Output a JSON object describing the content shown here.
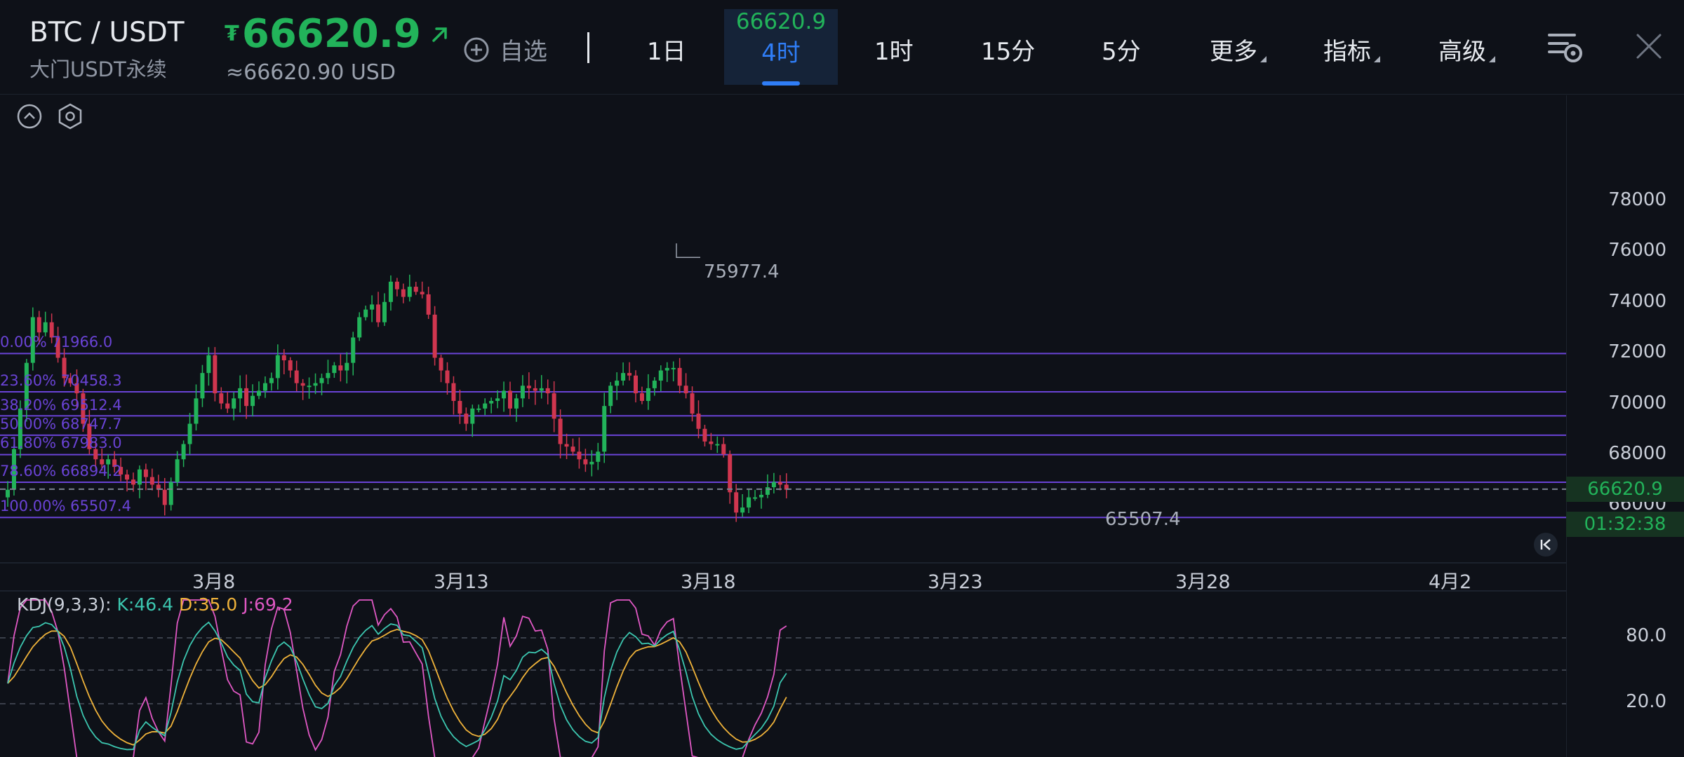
{
  "header": {
    "pair": "BTC / USDT",
    "subtitle": "大门USDT永续",
    "currency_symbol": "₮",
    "price": "66620.9",
    "usd_price": "≈66620.90 USD",
    "favorite_label": "自选",
    "timeframes": [
      "1日",
      "4时",
      "1时",
      "15分",
      "5分"
    ],
    "active_timeframe": "4时",
    "active_price": "66620.9",
    "menus": [
      "更多",
      "指标",
      "高级"
    ]
  },
  "chart": {
    "price_axis": [
      "78000",
      "76000",
      "74000",
      "72000",
      "70000",
      "68000",
      "66000"
    ],
    "date_axis": [
      "3月8",
      "3月13",
      "3月18",
      "3月23",
      "3月28",
      "4月2"
    ],
    "high_label": "75977.4",
    "low_label": "65507.4",
    "last_price": "66620.9",
    "countdown": "01:32:38",
    "fib_levels": [
      {
        "label": "0.00% 71966.0",
        "value": 71966.0
      },
      {
        "label": "23.60% 70458.3",
        "value": 70458.3
      },
      {
        "label": "38.20% 69512.4",
        "value": 69512.4
      },
      {
        "label": "50.00% 68747.7",
        "value": 68747.7
      },
      {
        "label": "61.80% 67983.0",
        "value": 67983.0
      },
      {
        "label": "78.60% 66894.2",
        "value": 66894.2
      },
      {
        "label": "100.00% 65507.4",
        "value": 65507.4
      }
    ],
    "colors": {
      "up": "#22b35a",
      "down": "#d0364f",
      "fib": "#6a43d6"
    }
  },
  "indicator": {
    "name": "KDJ(9,3,3):",
    "k": "K:46.4",
    "d": "D:35.0",
    "j": "J:69.2",
    "levels": [
      "80.0",
      "20.0"
    ]
  },
  "chart_data": {
    "type": "candlestick",
    "x_label_dates": [
      "3月8",
      "3月13",
      "3月18",
      "3月23",
      "3月28",
      "4月2"
    ],
    "ylim": [
      64600,
      79000
    ],
    "closes": [
      66600,
      68200,
      69800,
      71600,
      73400,
      72800,
      73200,
      72600,
      71800,
      71000,
      70800,
      70400,
      69200,
      68200,
      67800,
      67600,
      67800,
      67500,
      67200,
      67000,
      66800,
      67400,
      67100,
      66800,
      66600,
      66000,
      66900,
      67800,
      68400,
      69200,
      70200,
      71200,
      71900,
      70400,
      70000,
      69800,
      70200,
      70600,
      69900,
      70300,
      70500,
      70800,
      71000,
      71900,
      71700,
      71300,
      70800,
      70700,
      70700,
      70800,
      71000,
      71200,
      71500,
      71300,
      71600,
      72600,
      73400,
      73700,
      73900,
      73200,
      74000,
      74800,
      74500,
      74200,
      74600,
      74400,
      74300,
      73500,
      71800,
      71300,
      70800,
      70100,
      69600,
      69200,
      69800,
      69800,
      70000,
      70100,
      70200,
      70500,
      69800,
      70200,
      70700,
      70600,
      70500,
      70600,
      70400,
      69400,
      68400,
      68300,
      68100,
      67800,
      67600,
      67700,
      68100,
      69900,
      70700,
      70900,
      71200,
      71100,
      70400,
      70100,
      70600,
      70900,
      71300,
      71400,
      71400,
      70700,
      70400,
      69600,
      69000,
      68500,
      68400,
      68400,
      68000,
      66500,
      65700,
      65900,
      66300,
      66300,
      66400,
      66700,
      66900,
      66800,
      66600
    ],
    "kdj": {
      "k": 46.4,
      "d": 35.0,
      "j": 69.2
    }
  }
}
